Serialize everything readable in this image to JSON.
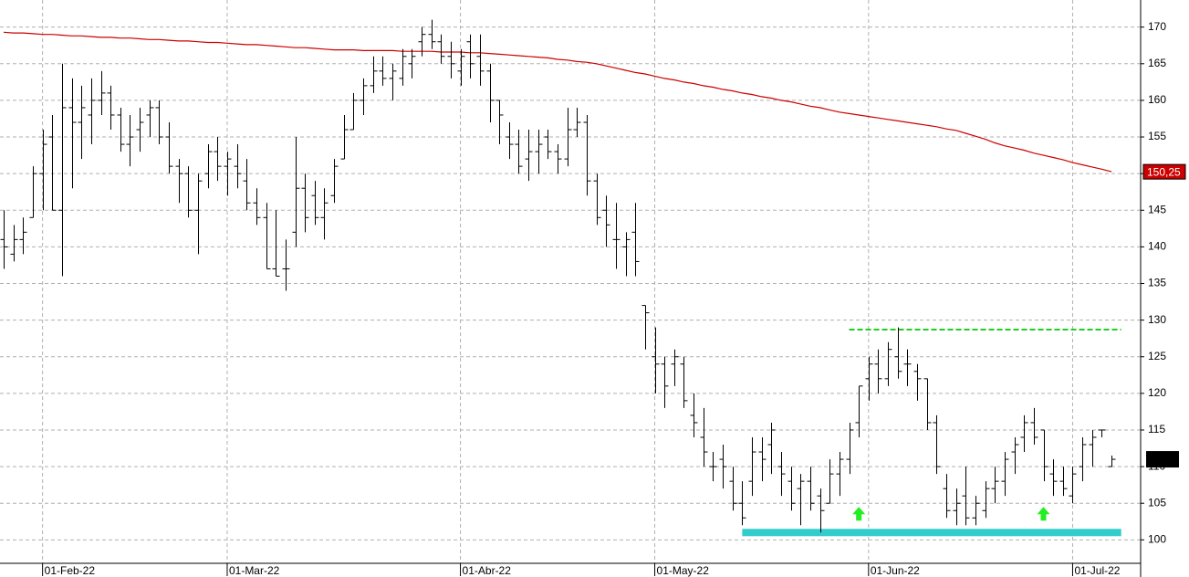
{
  "chart_data": {
    "type": "ohlc",
    "ylim": [
      96.8,
      173.7
    ],
    "yticks": [
      100,
      105,
      110,
      115,
      120,
      125,
      130,
      135,
      140,
      145,
      150,
      155,
      160,
      165,
      170
    ],
    "xlim": [
      -0.38,
      117
    ],
    "xticks": [
      {
        "value": 4,
        "label": "01-Feb-22"
      },
      {
        "value": 23,
        "label": "01-Mar-22"
      },
      {
        "value": 47,
        "label": "01-Abr-22"
      },
      {
        "value": 67,
        "label": "01-May-22"
      },
      {
        "value": 89,
        "label": "01-Jun-22"
      },
      {
        "value": 110,
        "label": "01-Jul-22"
      }
    ],
    "grid": true,
    "bar_color": "#000000",
    "bars": [
      [
        141,
        145,
        137,
        140
      ],
      [
        139,
        143,
        138,
        141
      ],
      [
        141,
        144,
        139,
        142
      ],
      [
        144,
        151,
        144,
        150
      ],
      [
        150,
        156,
        145,
        154
      ],
      [
        155,
        158,
        145,
        145
      ],
      [
        145,
        165,
        136,
        159
      ],
      [
        159,
        163,
        148,
        157
      ],
      [
        157,
        162,
        152,
        159
      ],
      [
        158,
        163,
        154,
        160
      ],
      [
        160,
        164,
        158,
        161
      ],
      [
        161,
        162,
        156,
        158
      ],
      [
        158,
        159,
        153,
        154
      ],
      [
        154,
        158,
        151,
        155
      ],
      [
        156,
        159,
        153,
        157
      ],
      [
        158,
        160,
        155,
        159
      ],
      [
        159,
        160,
        154,
        155
      ],
      [
        155,
        157,
        150,
        151
      ],
      [
        151,
        152,
        146,
        150
      ],
      [
        150,
        151,
        144,
        145
      ],
      [
        145,
        150,
        139,
        149
      ],
      [
        150,
        154,
        148,
        153
      ],
      [
        153,
        155,
        149,
        151
      ],
      [
        151,
        153,
        147,
        152
      ],
      [
        151,
        154,
        148,
        150
      ],
      [
        149,
        152,
        145,
        146
      ],
      [
        146,
        148,
        143,
        144
      ],
      [
        144,
        146,
        137,
        137
      ],
      [
        137,
        145,
        136,
        136
      ],
      [
        137,
        141,
        134,
        137
      ],
      [
        142,
        155,
        140,
        148
      ],
      [
        148,
        150,
        142,
        144
      ],
      [
        147,
        149,
        143,
        144
      ],
      [
        144,
        148,
        141,
        146
      ],
      [
        147,
        152,
        146,
        151
      ],
      [
        152,
        158,
        152,
        156
      ],
      [
        156,
        161,
        156,
        160
      ],
      [
        160,
        163,
        158,
        162
      ],
      [
        162,
        166,
        161,
        164
      ],
      [
        164,
        166,
        162,
        163
      ],
      [
        163,
        165,
        160,
        164
      ],
      [
        163,
        167,
        162,
        166
      ],
      [
        165,
        167,
        163,
        166
      ],
      [
        168,
        170,
        166,
        169
      ],
      [
        169,
        171,
        167,
        168
      ],
      [
        168,
        169,
        165,
        166
      ],
      [
        166,
        168,
        163,
        165
      ],
      [
        164,
        167,
        162,
        166
      ],
      [
        168,
        169,
        163,
        165
      ],
      [
        166,
        169,
        162,
        164
      ],
      [
        164,
        165,
        157,
        160
      ],
      [
        160,
        160,
        154,
        158
      ],
      [
        155,
        157,
        152,
        154
      ],
      [
        154,
        156,
        150,
        151
      ],
      [
        152,
        156,
        149,
        153
      ],
      [
        153,
        156,
        150,
        154
      ],
      [
        155,
        156,
        152,
        153
      ],
      [
        153,
        154,
        150,
        152
      ],
      [
        152,
        159,
        151,
        156
      ],
      [
        156,
        159,
        155,
        157
      ],
      [
        157,
        158,
        147,
        149
      ],
      [
        149,
        150,
        143,
        144
      ],
      [
        145,
        147,
        140,
        143
      ],
      [
        141,
        146,
        137,
        141
      ],
      [
        140,
        142,
        136,
        141
      ],
      [
        142,
        146,
        136,
        138
      ],
      [
        132,
        132,
        126,
        131
      ],
      [
        125,
        129,
        120,
        124
      ],
      [
        124,
        125,
        118,
        121
      ],
      [
        124,
        126,
        121,
        125
      ],
      [
        124,
        125,
        118,
        119
      ],
      [
        117,
        120,
        114,
        116
      ],
      [
        114,
        118,
        110,
        112
      ],
      [
        110,
        112,
        108,
        110
      ],
      [
        111,
        113,
        107,
        110
      ],
      [
        108,
        110,
        104,
        105
      ],
      [
        105,
        108,
        102,
        103
      ],
      [
        108,
        114,
        106,
        112
      ],
      [
        112,
        114,
        108,
        111
      ],
      [
        113,
        116,
        109,
        115
      ],
      [
        110,
        112,
        106,
        109
      ],
      [
        108,
        110,
        104,
        105
      ],
      [
        107,
        109,
        102,
        108
      ],
      [
        108,
        110,
        104,
        105
      ],
      [
        106,
        107,
        101,
        104
      ],
      [
        105,
        111,
        105,
        109
      ],
      [
        109,
        112,
        106,
        111
      ],
      [
        111,
        116,
        109,
        115
      ],
      [
        116,
        121,
        114,
        121
      ],
      [
        122,
        125,
        119,
        124
      ],
      [
        124,
        126,
        120,
        122
      ],
      [
        122,
        127,
        121,
        126
      ],
      [
        125,
        129,
        122,
        123
      ],
      [
        124,
        126,
        121,
        124
      ],
      [
        123,
        124,
        119,
        122
      ],
      [
        122,
        122,
        115,
        116
      ],
      [
        116,
        117,
        109,
        110
      ],
      [
        107,
        109,
        103,
        104
      ],
      [
        104,
        107,
        102,
        105
      ],
      [
        106,
        110,
        102,
        103
      ],
      [
        103,
        106,
        102,
        105
      ],
      [
        104,
        108,
        103,
        107
      ],
      [
        107,
        110,
        105,
        108
      ],
      [
        108,
        112,
        106,
        111
      ],
      [
        112,
        114,
        109,
        113
      ],
      [
        114,
        117,
        112,
        116
      ],
      [
        116,
        118,
        113,
        114
      ],
      [
        115,
        115,
        108,
        110
      ],
      [
        109,
        111,
        106,
        108
      ],
      [
        108,
        110,
        106,
        107
      ],
      [
        106,
        110,
        105,
        109
      ],
      [
        110,
        114,
        108,
        113
      ],
      [
        113,
        115,
        110,
        114
      ],
      [
        115,
        115,
        114,
        115
      ],
      [
        110,
        111.5,
        110,
        111
      ]
    ],
    "ma": {
      "color": "#cc0000",
      "values": [
        169.3,
        169.2,
        169.2,
        169.1,
        169.0,
        169.0,
        168.9,
        168.8,
        168.8,
        168.7,
        168.6,
        168.6,
        168.5,
        168.5,
        168.4,
        168.3,
        168.3,
        168.2,
        168.1,
        168.1,
        168.0,
        167.9,
        167.9,
        167.8,
        167.7,
        167.6,
        167.6,
        167.5,
        167.4,
        167.3,
        167.2,
        167.2,
        167.1,
        167.0,
        166.9,
        166.9,
        166.9,
        166.8,
        166.8,
        166.8,
        166.8,
        166.7,
        166.7,
        166.7,
        166.7,
        166.6,
        166.6,
        166.6,
        166.5,
        166.5,
        166.4,
        166.3,
        166.2,
        166.1,
        166.0,
        165.9,
        165.8,
        165.6,
        165.5,
        165.3,
        165.2,
        165.0,
        164.7,
        164.4,
        164.1,
        163.8,
        163.6,
        163.3,
        163.0,
        162.8,
        162.5,
        162.3,
        162.0,
        161.8,
        161.5,
        161.3,
        161.0,
        160.8,
        160.5,
        160.3,
        160.0,
        159.8,
        159.5,
        159.2,
        159.0,
        158.7,
        158.4,
        158.2,
        158.0,
        157.8,
        157.6,
        157.4,
        157.2,
        157.0,
        156.8,
        156.6,
        156.4,
        156.1,
        155.9,
        155.5,
        155.1,
        154.7,
        154.2,
        153.8,
        153.5,
        153.2,
        152.8,
        152.5,
        152.2,
        151.9,
        151.5,
        151.2,
        150.9,
        150.6,
        150.25
      ],
      "last_label": {
        "value": 150.25,
        "label": "150,25"
      }
    },
    "resistance": {
      "value": 128.7,
      "from": 87,
      "to": 115,
      "color": "#22cc22"
    },
    "support": {
      "value": 101,
      "from": 76,
      "to": 115,
      "color": "#33cccc"
    },
    "arrows": [
      {
        "index": 88,
        "value": 103.5
      },
      {
        "index": 107,
        "value": 103.5
      }
    ],
    "arrow_color": "#22ee22",
    "price_box_color": "#000000"
  }
}
